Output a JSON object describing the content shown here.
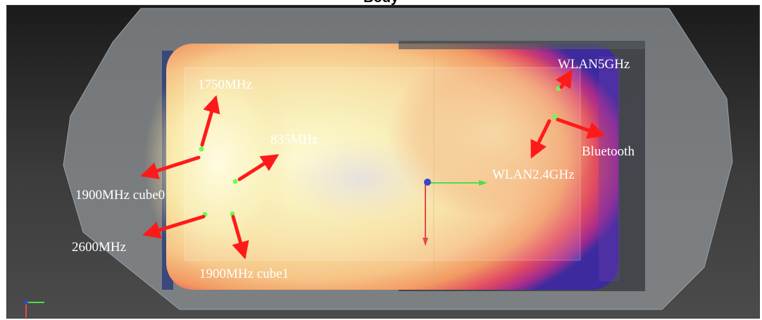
{
  "title_fragment": "Body",
  "labels": {
    "l1750": "1750MHz",
    "l835": "835MHz",
    "l1900c0": "1900MHz cube0",
    "l2600": "2600MHz",
    "l1900c1": "1900MHz cube1",
    "lwlan5": "WLAN5GHz",
    "lbt": "Bluetooth",
    "lwlan24": "WLAN2.4GHz"
  },
  "colors": {
    "arrow": "#ff1a1a",
    "probe_point": "#66ff55",
    "label": "#ffffff",
    "background_top": "#1d1d1d",
    "background_bottom": "#4a4a4a"
  }
}
